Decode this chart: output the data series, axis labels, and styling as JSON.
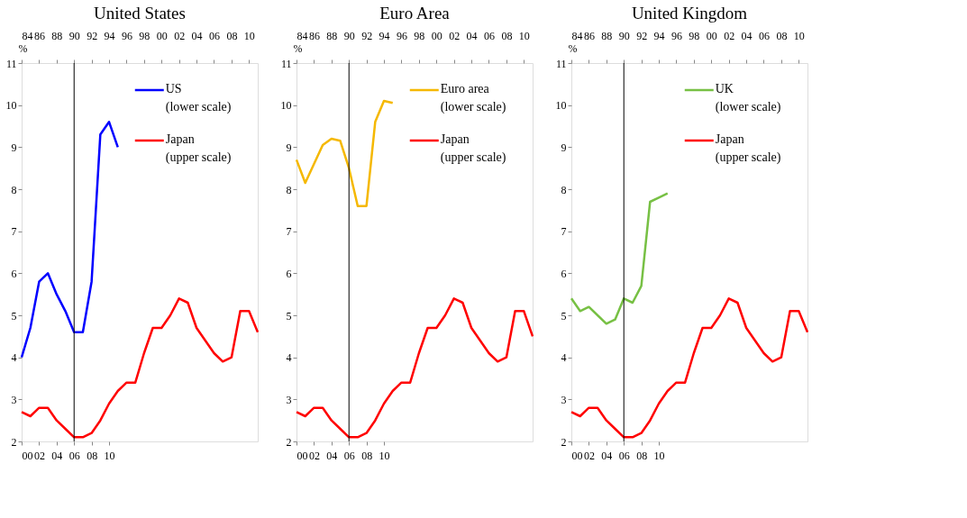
{
  "chart_data": [
    {
      "type": "line",
      "title": "United States",
      "ylabel": "%",
      "legend": "top right",
      "x": [
        2000,
        2001,
        2002,
        2003,
        2004,
        2005,
        2006,
        2007,
        2008,
        2009,
        2010,
        2011
      ],
      "series": [
        {
          "name": "US\n(lower scale)",
          "color": "#0000ff",
          "values": [
            4.0,
            4.7,
            5.8,
            6.0,
            5.5,
            5.1,
            4.6,
            4.6,
            5.8,
            9.3,
            9.6,
            9.0
          ]
        },
        {
          "name": "Japan\n(upper scale)",
          "color": "#ff0000",
          "axis": "x2",
          "x": [
            1984,
            1985,
            1986,
            1987,
            1988,
            1989,
            1990,
            1991,
            1992,
            1993,
            1994,
            1995,
            1996,
            1997,
            1998,
            1999,
            2000,
            2001,
            2002,
            2003,
            2004,
            2005,
            2006,
            2007,
            2008,
            2009,
            2010,
            2011
          ],
          "values": [
            2.7,
            2.6,
            2.8,
            2.8,
            2.5,
            2.3,
            2.1,
            2.1,
            2.2,
            2.5,
            2.9,
            3.2,
            3.4,
            3.4,
            4.1,
            4.7,
            4.7,
            5.0,
            5.4,
            5.3,
            4.7,
            4.4,
            4.1,
            3.9,
            4.0,
            5.1,
            5.1,
            4.6
          ]
        }
      ],
      "xlim": [
        2000,
        2027
      ],
      "xticks": [
        {
          "value": 2000,
          "label": "00"
        },
        {
          "value": 2002,
          "label": "02"
        },
        {
          "value": 2004,
          "label": "04"
        },
        {
          "value": 2006,
          "label": "06"
        },
        {
          "value": 2008,
          "label": "08"
        },
        {
          "value": 2010,
          "label": "10"
        }
      ],
      "x2lim": [
        1984,
        2011
      ],
      "x2ticks": [
        {
          "value": 1984,
          "label": "84"
        },
        {
          "value": 1986,
          "label": "86"
        },
        {
          "value": 1988,
          "label": "88"
        },
        {
          "value": 1990,
          "label": "90"
        },
        {
          "value": 1992,
          "label": "92"
        },
        {
          "value": 1994,
          "label": "94"
        },
        {
          "value": 1996,
          "label": "96"
        },
        {
          "value": 1998,
          "label": "98"
        },
        {
          "value": 2000,
          "label": "00"
        },
        {
          "value": 2002,
          "label": "02"
        },
        {
          "value": 2004,
          "label": "04"
        },
        {
          "value": 2006,
          "label": "06"
        },
        {
          "value": 2008,
          "label": "08"
        },
        {
          "value": 2010,
          "label": "10"
        }
      ],
      "ylim": [
        2,
        11
      ],
      "yticks": [
        2,
        3,
        4,
        5,
        6,
        7,
        8,
        9,
        10,
        11
      ],
      "ref_lines": [
        {
          "axis": "x",
          "value": 2006,
          "color": "#000000"
        }
      ]
    },
    {
      "type": "line",
      "title": "Euro Area",
      "ylabel": "%",
      "legend": "top right",
      "x": [
        2000,
        2001,
        2002,
        2003,
        2004,
        2005,
        2006,
        2007,
        2008,
        2009,
        2010,
        2011
      ],
      "series": [
        {
          "name": "Euro area\n(lower scale)",
          "color": "#f5b800",
          "values": [
            8.7,
            8.15,
            8.6,
            9.05,
            9.2,
            9.15,
            8.5,
            7.6,
            7.6,
            9.6,
            10.1,
            10.05
          ]
        },
        {
          "name": "Japan\n(upper scale)",
          "color": "#ff0000",
          "axis": "x2",
          "x": [
            1984,
            1985,
            1986,
            1987,
            1988,
            1989,
            1990,
            1991,
            1992,
            1993,
            1994,
            1995,
            1996,
            1997,
            1998,
            1999,
            2000,
            2001,
            2002,
            2003,
            2004,
            2005,
            2006,
            2007,
            2008,
            2009,
            2010,
            2011
          ],
          "values": [
            2.7,
            2.6,
            2.8,
            2.8,
            2.5,
            2.3,
            2.1,
            2.1,
            2.2,
            2.5,
            2.9,
            3.2,
            3.4,
            3.4,
            4.1,
            4.7,
            4.7,
            5.0,
            5.4,
            5.3,
            4.7,
            4.4,
            4.1,
            3.9,
            4.0,
            5.1,
            5.1,
            4.5
          ]
        }
      ],
      "xlim": [
        2000,
        2027
      ],
      "xticks": [
        {
          "value": 2000,
          "label": "00"
        },
        {
          "value": 2002,
          "label": "02"
        },
        {
          "value": 2004,
          "label": "04"
        },
        {
          "value": 2006,
          "label": "06"
        },
        {
          "value": 2008,
          "label": "08"
        },
        {
          "value": 2010,
          "label": "10"
        }
      ],
      "x2lim": [
        1984,
        2011
      ],
      "x2ticks": [
        {
          "value": 1984,
          "label": "84"
        },
        {
          "value": 1986,
          "label": "86"
        },
        {
          "value": 1988,
          "label": "88"
        },
        {
          "value": 1990,
          "label": "90"
        },
        {
          "value": 1992,
          "label": "92"
        },
        {
          "value": 1994,
          "label": "94"
        },
        {
          "value": 1996,
          "label": "96"
        },
        {
          "value": 1998,
          "label": "98"
        },
        {
          "value": 2000,
          "label": "00"
        },
        {
          "value": 2002,
          "label": "02"
        },
        {
          "value": 2004,
          "label": "04"
        },
        {
          "value": 2006,
          "label": "06"
        },
        {
          "value": 2008,
          "label": "08"
        },
        {
          "value": 2010,
          "label": "10"
        }
      ],
      "ylim": [
        2,
        11
      ],
      "yticks": [
        2,
        3,
        4,
        5,
        6,
        7,
        8,
        9,
        10,
        11
      ],
      "ref_lines": [
        {
          "axis": "x",
          "value": 2006,
          "color": "#000000"
        }
      ]
    },
    {
      "type": "line",
      "title": "United Kingdom",
      "ylabel": "%",
      "legend": "top right",
      "x": [
        2000,
        2001,
        2002,
        2003,
        2004,
        2005,
        2006,
        2007,
        2008,
        2009,
        2010,
        2011
      ],
      "series": [
        {
          "name": "UK\n(lower scale)",
          "color": "#77c044",
          "values": [
            5.4,
            5.1,
            5.2,
            5.0,
            4.8,
            4.9,
            5.4,
            5.3,
            5.7,
            7.7,
            7.8,
            7.9
          ]
        },
        {
          "name": "Japan\n(upper scale)",
          "color": "#ff0000",
          "axis": "x2",
          "x": [
            1984,
            1985,
            1986,
            1987,
            1988,
            1989,
            1990,
            1991,
            1992,
            1993,
            1994,
            1995,
            1996,
            1997,
            1998,
            1999,
            2000,
            2001,
            2002,
            2003,
            2004,
            2005,
            2006,
            2007,
            2008,
            2009,
            2010,
            2011
          ],
          "values": [
            2.7,
            2.6,
            2.8,
            2.8,
            2.5,
            2.3,
            2.1,
            2.1,
            2.2,
            2.5,
            2.9,
            3.2,
            3.4,
            3.4,
            4.1,
            4.7,
            4.7,
            5.0,
            5.4,
            5.3,
            4.7,
            4.4,
            4.1,
            3.9,
            4.0,
            5.1,
            5.1,
            4.6
          ]
        }
      ],
      "xlim": [
        2000,
        2027
      ],
      "xticks": [
        {
          "value": 2000,
          "label": "00"
        },
        {
          "value": 2002,
          "label": "02"
        },
        {
          "value": 2004,
          "label": "04"
        },
        {
          "value": 2006,
          "label": "06"
        },
        {
          "value": 2008,
          "label": "08"
        },
        {
          "value": 2010,
          "label": "10"
        }
      ],
      "x2lim": [
        1984,
        2011
      ],
      "x2ticks": [
        {
          "value": 1984,
          "label": "84"
        },
        {
          "value": 1986,
          "label": "86"
        },
        {
          "value": 1988,
          "label": "88"
        },
        {
          "value": 1990,
          "label": "90"
        },
        {
          "value": 1992,
          "label": "92"
        },
        {
          "value": 1994,
          "label": "94"
        },
        {
          "value": 1996,
          "label": "96"
        },
        {
          "value": 1998,
          "label": "98"
        },
        {
          "value": 2000,
          "label": "00"
        },
        {
          "value": 2002,
          "label": "02"
        },
        {
          "value": 2004,
          "label": "04"
        },
        {
          "value": 2006,
          "label": "06"
        },
        {
          "value": 2008,
          "label": "08"
        },
        {
          "value": 2010,
          "label": "10"
        }
      ],
      "ylim": [
        2,
        11
      ],
      "yticks": [
        2,
        3,
        4,
        5,
        6,
        7,
        8,
        9,
        10,
        11
      ],
      "ref_lines": [
        {
          "axis": "x",
          "value": 2006,
          "color": "#000000"
        }
      ]
    }
  ]
}
